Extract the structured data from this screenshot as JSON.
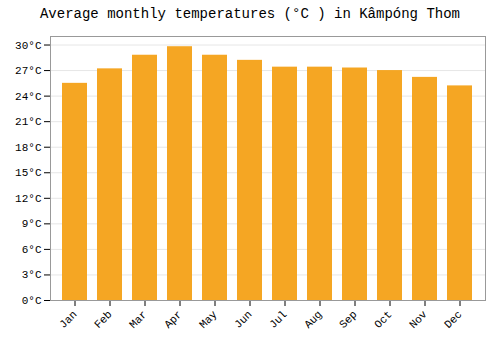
{
  "chart_data": {
    "type": "bar",
    "title": "Average monthly temperatures (°C ) in Kâmpóng Thom",
    "categories": [
      "Jan",
      "Feb",
      "Mar",
      "Apr",
      "May",
      "Jun",
      "Jul",
      "Aug",
      "Sep",
      "Oct",
      "Nov",
      "Dec"
    ],
    "values": [
      25.5,
      27.2,
      28.8,
      29.8,
      28.8,
      28.2,
      27.4,
      27.4,
      27.3,
      27.0,
      26.2,
      25.2
    ],
    "color": "#F5A623",
    "ylim": [
      0,
      31
    ],
    "yticks": [
      {
        "value": 0,
        "label": "0°C"
      },
      {
        "value": 3,
        "label": "3°C"
      },
      {
        "value": 6,
        "label": "6°C"
      },
      {
        "value": 9,
        "label": "9°C"
      },
      {
        "value": 12,
        "label": "12°C"
      },
      {
        "value": 15,
        "label": "15°C"
      },
      {
        "value": 18,
        "label": "18°C"
      },
      {
        "value": 21,
        "label": "21°C"
      },
      {
        "value": 24,
        "label": "24°C"
      },
      {
        "value": 27,
        "label": "27°C"
      },
      {
        "value": 30,
        "label": "30°C"
      }
    ],
    "grid": true
  }
}
